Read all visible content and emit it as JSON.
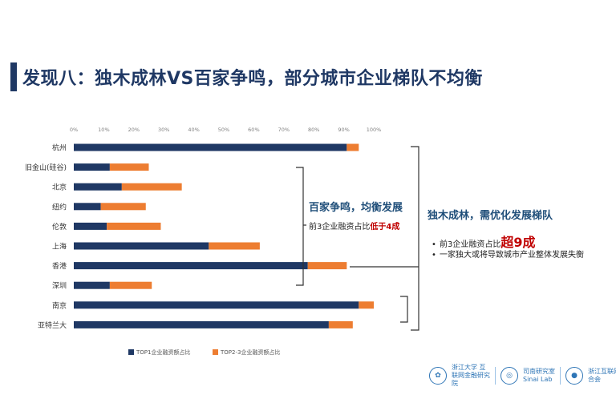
{
  "page": {
    "title": "发现八：独木成林VS百家争鸣，部分城市企业梯队不均衡"
  },
  "chart_data": {
    "type": "bar",
    "orientation": "horizontal",
    "stacked": true,
    "categories": [
      "杭州",
      "旧金山(硅谷)",
      "北京",
      "纽约",
      "伦敦",
      "上海",
      "香港",
      "深圳",
      "南京",
      "亚特兰大"
    ],
    "series": [
      {
        "name": "TOP1企业融资额占比",
        "color": "#1f3864",
        "values": [
          91,
          12,
          16,
          9,
          11,
          45,
          78,
          12,
          95,
          85
        ]
      },
      {
        "name": "TOP2-3企业融资额占比",
        "color": "#ed7d31",
        "values": [
          4,
          13,
          20,
          15,
          18,
          17,
          13,
          14,
          5,
          8
        ]
      }
    ],
    "x_ticks": [
      "0%",
      "10%",
      "20%",
      "30%",
      "40%",
      "50%",
      "60%",
      "70%",
      "80%",
      "90%",
      "100%"
    ],
    "xlim": [
      0,
      100
    ],
    "legend_position": "bottom-left",
    "grid": false
  },
  "annotations": {
    "middle": {
      "title": "百家争鸣，均衡发展",
      "sub_prefix": "前3企业融资占比",
      "sub_highlight": "低于4成"
    },
    "right": {
      "title": "独木成林，需优化发展梯队",
      "bullet1_prefix": "前3企业融资占比",
      "bullet1_highlight": "超9成",
      "bullet2": "一家独大或将导致城市产业整体发展失衡",
      "bullet_symbol": "•"
    }
  },
  "logos": {
    "logo1_label": "浙江大学 互联网金融研究院",
    "logo2_label": "司南研究室 Sinai Lab",
    "logo3_label": "浙江互联网金融联合会"
  }
}
